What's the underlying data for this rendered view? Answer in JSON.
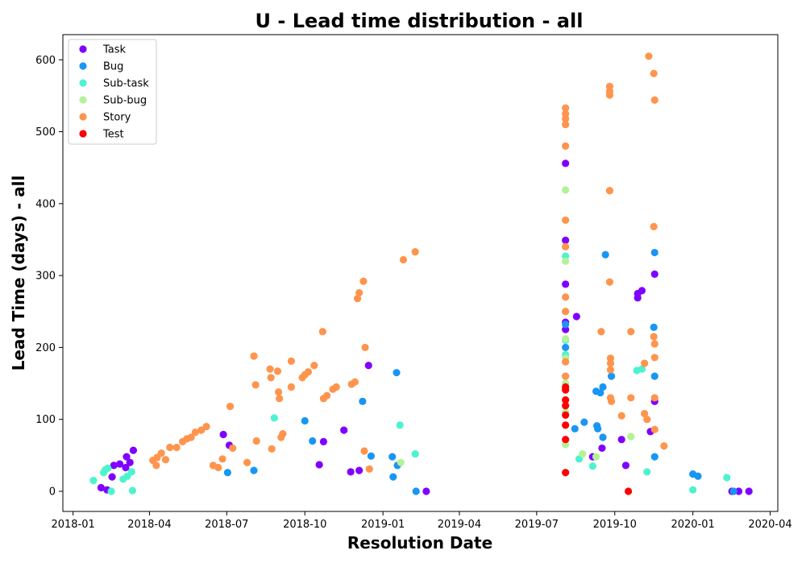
{
  "chart_data": {
    "type": "scatter",
    "title": "U - Lead time distribution - all",
    "xlabel": "Resolution Date",
    "ylabel": "Lead Time (days) - all",
    "x_axis_type": "date",
    "xlim": [
      "2017-12-20",
      "2020-04-10"
    ],
    "ylim": [
      -28,
      635
    ],
    "grid": false,
    "legend_position": "top-left",
    "x_ticks": [
      "2018-01",
      "2018-04",
      "2018-07",
      "2018-10",
      "2019-01",
      "2019-04",
      "2019-07",
      "2019-10",
      "2020-01",
      "2020-04"
    ],
    "x_tick_dates": [
      "2018-01-01",
      "2018-04-01",
      "2018-07-01",
      "2018-10-01",
      "2019-01-01",
      "2019-04-01",
      "2019-07-01",
      "2019-10-01",
      "2020-01-01",
      "2020-04-01"
    ],
    "y_ticks": [
      0,
      100,
      200,
      300,
      400,
      500,
      600
    ],
    "series": [
      {
        "name": "Task",
        "color": "#8000ff",
        "points": [
          [
            "2018-02-03",
            5
          ],
          [
            "2018-02-10",
            2
          ],
          [
            "2018-02-16",
            20
          ],
          [
            "2018-02-18",
            36
          ],
          [
            "2018-02-25",
            38
          ],
          [
            "2018-03-04",
            33
          ],
          [
            "2018-03-05",
            48
          ],
          [
            "2018-03-09",
            40
          ],
          [
            "2018-03-13",
            57
          ],
          [
            "2018-06-27",
            79
          ],
          [
            "2018-07-04",
            64
          ],
          [
            "2018-10-18",
            37
          ],
          [
            "2018-10-23",
            69
          ],
          [
            "2018-11-16",
            85
          ],
          [
            "2018-11-24",
            27
          ],
          [
            "2018-12-04",
            29
          ],
          [
            "2018-12-15",
            175
          ],
          [
            "2019-02-21",
            0
          ],
          [
            "2019-08-04",
            456
          ],
          [
            "2019-08-04",
            349
          ],
          [
            "2019-08-04",
            288
          ],
          [
            "2019-08-04",
            235
          ],
          [
            "2019-08-04",
            225
          ],
          [
            "2019-08-17",
            243
          ],
          [
            "2019-09-05",
            48
          ],
          [
            "2019-09-16",
            60
          ],
          [
            "2019-10-09",
            72
          ],
          [
            "2019-10-14",
            36
          ],
          [
            "2019-10-28",
            275
          ],
          [
            "2019-10-28",
            269
          ],
          [
            "2019-11-02",
            279
          ],
          [
            "2019-11-12",
            83
          ],
          [
            "2019-11-17",
            302
          ],
          [
            "2019-11-17",
            125
          ],
          [
            "2020-02-16",
            0
          ],
          [
            "2020-02-24",
            0
          ],
          [
            "2020-03-07",
            0
          ]
        ]
      },
      {
        "name": "Bug",
        "color": "#1996f3",
        "points": [
          [
            "2018-07-02",
            26
          ],
          [
            "2018-08-02",
            29
          ],
          [
            "2018-10-01",
            98
          ],
          [
            "2018-10-10",
            70
          ],
          [
            "2018-12-08",
            125
          ],
          [
            "2018-12-18",
            49
          ],
          [
            "2019-01-12",
            48
          ],
          [
            "2019-01-13",
            20
          ],
          [
            "2019-01-17",
            165
          ],
          [
            "2019-01-18",
            36
          ],
          [
            "2019-02-09",
            0
          ],
          [
            "2019-08-04",
            232
          ],
          [
            "2019-08-04",
            200
          ],
          [
            "2019-08-15",
            87
          ],
          [
            "2019-08-26",
            96
          ],
          [
            "2019-09-09",
            139
          ],
          [
            "2019-09-10",
            91
          ],
          [
            "2019-09-11",
            87
          ],
          [
            "2019-09-14",
            137
          ],
          [
            "2019-09-17",
            145
          ],
          [
            "2019-09-17",
            75
          ],
          [
            "2019-09-20",
            329
          ],
          [
            "2019-09-27",
            160
          ],
          [
            "2019-11-16",
            228
          ],
          [
            "2019-11-17",
            332
          ],
          [
            "2019-11-17",
            160
          ],
          [
            "2019-11-17",
            48
          ],
          [
            "2020-01-01",
            24
          ],
          [
            "2020-01-07",
            21
          ],
          [
            "2020-02-18",
            0
          ]
        ]
      },
      {
        "name": "Sub-task",
        "color": "#4df3ce",
        "points": [
          [
            "2018-01-25",
            15
          ],
          [
            "2018-02-06",
            26
          ],
          [
            "2018-02-08",
            30
          ],
          [
            "2018-02-11",
            32
          ],
          [
            "2018-02-15",
            0
          ],
          [
            "2018-03-01",
            17
          ],
          [
            "2018-03-06",
            21
          ],
          [
            "2018-03-11",
            27
          ],
          [
            "2018-03-12",
            1
          ],
          [
            "2018-08-26",
            102
          ],
          [
            "2019-01-21",
            92
          ],
          [
            "2019-02-08",
            52
          ],
          [
            "2019-08-04",
            327
          ],
          [
            "2019-08-04",
            210
          ],
          [
            "2019-08-04",
            190
          ],
          [
            "2019-08-04",
            160
          ],
          [
            "2019-08-20",
            45
          ],
          [
            "2019-09-05",
            35
          ],
          [
            "2019-10-27",
            168
          ],
          [
            "2019-11-02",
            170
          ],
          [
            "2019-11-08",
            27
          ],
          [
            "2020-01-01",
            2
          ],
          [
            "2020-02-10",
            19
          ]
        ]
      },
      {
        "name": "Sub-bug",
        "color": "#b3f396",
        "points": [
          [
            "2019-01-22",
            40
          ],
          [
            "2019-08-04",
            419
          ],
          [
            "2019-08-04",
            320
          ],
          [
            "2019-08-04",
            250
          ],
          [
            "2019-08-04",
            212
          ],
          [
            "2019-08-04",
            185
          ],
          [
            "2019-08-04",
            150
          ],
          [
            "2019-08-04",
            110
          ],
          [
            "2019-08-04",
            65
          ],
          [
            "2019-08-24",
            52
          ],
          [
            "2019-09-09",
            48
          ],
          [
            "2019-10-20",
            76
          ]
        ]
      },
      {
        "name": "Story",
        "color": "#ff944d",
        "points": [
          [
            "2018-04-05",
            43
          ],
          [
            "2018-04-09",
            36
          ],
          [
            "2018-04-10",
            47
          ],
          [
            "2018-04-15",
            53
          ],
          [
            "2018-04-20",
            44
          ],
          [
            "2018-04-25",
            61
          ],
          [
            "2018-05-03",
            61
          ],
          [
            "2018-05-10",
            69
          ],
          [
            "2018-05-15",
            73
          ],
          [
            "2018-05-20",
            75
          ],
          [
            "2018-05-25",
            82
          ],
          [
            "2018-06-01",
            85
          ],
          [
            "2018-06-07",
            90
          ],
          [
            "2018-06-15",
            36
          ],
          [
            "2018-06-21",
            33
          ],
          [
            "2018-06-26",
            45
          ],
          [
            "2018-07-05",
            118
          ],
          [
            "2018-07-08",
            60
          ],
          [
            "2018-07-25",
            40
          ],
          [
            "2018-08-02",
            188
          ],
          [
            "2018-08-04",
            148
          ],
          [
            "2018-08-05",
            70
          ],
          [
            "2018-08-21",
            170
          ],
          [
            "2018-08-22",
            158
          ],
          [
            "2018-08-23",
            59
          ],
          [
            "2018-08-30",
            167
          ],
          [
            "2018-08-31",
            138
          ],
          [
            "2018-09-01",
            129
          ],
          [
            "2018-09-05",
            80
          ],
          [
            "2018-09-03",
            75
          ],
          [
            "2018-09-15",
            181
          ],
          [
            "2018-09-15",
            145
          ],
          [
            "2018-09-28",
            158
          ],
          [
            "2018-10-01",
            162
          ],
          [
            "2018-10-05",
            166
          ],
          [
            "2018-10-12",
            175
          ],
          [
            "2018-10-22",
            222
          ],
          [
            "2018-10-23",
            129
          ],
          [
            "2018-10-27",
            133
          ],
          [
            "2018-11-03",
            142
          ],
          [
            "2018-11-07",
            145
          ],
          [
            "2018-11-25",
            149
          ],
          [
            "2018-11-29",
            152
          ],
          [
            "2018-12-02",
            268
          ],
          [
            "2018-12-04",
            276
          ],
          [
            "2018-12-09",
            292
          ],
          [
            "2018-12-11",
            200
          ],
          [
            "2018-12-10",
            56
          ],
          [
            "2018-12-16",
            31
          ],
          [
            "2019-01-25",
            322
          ],
          [
            "2019-02-08",
            333
          ],
          [
            "2019-08-04",
            533
          ],
          [
            "2019-08-04",
            525
          ],
          [
            "2019-08-04",
            518
          ],
          [
            "2019-08-04",
            510
          ],
          [
            "2019-08-04",
            480
          ],
          [
            "2019-08-04",
            377
          ],
          [
            "2019-08-04",
            340
          ],
          [
            "2019-08-04",
            270
          ],
          [
            "2019-08-04",
            250
          ],
          [
            "2019-08-04",
            180
          ],
          [
            "2019-08-04",
            160
          ],
          [
            "2019-09-15",
            222
          ],
          [
            "2019-09-25",
            563
          ],
          [
            "2019-09-25",
            556
          ],
          [
            "2019-09-25",
            551
          ],
          [
            "2019-09-25",
            418
          ],
          [
            "2019-09-25",
            291
          ],
          [
            "2019-09-26",
            185
          ],
          [
            "2019-09-26",
            178
          ],
          [
            "2019-09-26",
            169
          ],
          [
            "2019-09-26",
            130
          ],
          [
            "2019-09-27",
            125
          ],
          [
            "2019-10-09",
            105
          ],
          [
            "2019-10-20",
            222
          ],
          [
            "2019-10-20",
            130
          ],
          [
            "2019-11-05",
            178
          ],
          [
            "2019-11-05",
            108
          ],
          [
            "2019-11-08",
            100
          ],
          [
            "2019-11-10",
            605
          ],
          [
            "2019-11-16",
            581
          ],
          [
            "2019-11-17",
            544
          ],
          [
            "2019-11-16",
            368
          ],
          [
            "2019-11-16",
            215
          ],
          [
            "2019-11-17",
            205
          ],
          [
            "2019-11-17",
            186
          ],
          [
            "2019-11-17",
            130
          ],
          [
            "2019-11-17",
            86
          ],
          [
            "2019-11-28",
            63
          ]
        ]
      },
      {
        "name": "Test",
        "color": "#ff0000",
        "points": [
          [
            "2019-08-04",
            145
          ],
          [
            "2019-08-04",
            141
          ],
          [
            "2019-08-04",
            127
          ],
          [
            "2019-08-04",
            119
          ],
          [
            "2019-08-04",
            106
          ],
          [
            "2019-08-04",
            92
          ],
          [
            "2019-08-04",
            72
          ],
          [
            "2019-08-04",
            26
          ],
          [
            "2019-10-17",
            0
          ]
        ]
      }
    ]
  }
}
